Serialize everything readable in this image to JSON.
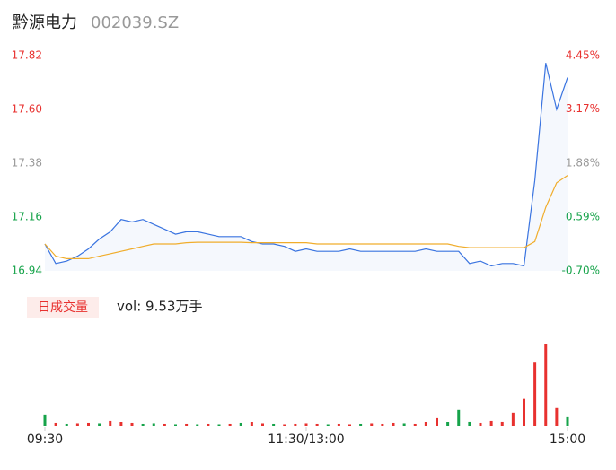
{
  "header": {
    "name": "黔源电力",
    "code": "002039.SZ"
  },
  "chart_data": [
    {
      "type": "line",
      "x": [
        0,
        5,
        10,
        15,
        20,
        25,
        30,
        35,
        40,
        45,
        50,
        55,
        60,
        65,
        70,
        75,
        80,
        85,
        90,
        95,
        100,
        105,
        110,
        115,
        120,
        125,
        130,
        135,
        140,
        145,
        150,
        155,
        160,
        165,
        170,
        175,
        180,
        185,
        190,
        195,
        200,
        205,
        210,
        215,
        220,
        225,
        230,
        235,
        240
      ],
      "xlim": [
        0,
        240
      ],
      "xticks": [
        {
          "value": 0,
          "label": "09:30"
        },
        {
          "value": 120,
          "label": "11:30/13:00"
        },
        {
          "value": 240,
          "label": "15:00"
        }
      ],
      "ylim": [
        16.94,
        17.82
      ],
      "yticks": [
        16.94,
        17.16,
        17.38,
        {
          "value": 17.6,
          "label": "17.60"
        },
        17.82
      ],
      "ytick_colors": [
        "#16a34a",
        "#16a34a",
        "#999999",
        "#e8312f",
        "#e8312f"
      ],
      "y2lim": [
        -0.7,
        4.45
      ],
      "y2ticks": [
        {
          "value": -0.7,
          "label": "-0.70%"
        },
        {
          "value": 0.59,
          "label": "0.59%"
        },
        {
          "value": 1.88,
          "label": "1.88%"
        },
        {
          "value": 3.17,
          "label": "3.17%"
        },
        {
          "value": 4.45,
          "label": "4.45%"
        }
      ],
      "series": [
        {
          "color": "#3a74e0",
          "values": [
            17.05,
            16.97,
            16.98,
            17.0,
            17.03,
            17.07,
            17.1,
            17.15,
            17.14,
            17.15,
            17.13,
            17.11,
            17.09,
            17.1,
            17.1,
            17.09,
            17.08,
            17.08,
            17.08,
            17.06,
            17.05,
            17.05,
            17.04,
            17.02,
            17.03,
            17.02,
            17.02,
            17.02,
            17.03,
            17.02,
            17.02,
            17.02,
            17.02,
            17.02,
            17.02,
            17.03,
            17.02,
            17.02,
            17.02,
            16.97,
            16.98,
            16.96,
            16.97,
            16.97,
            16.96,
            17.31,
            17.79,
            17.6,
            17.73
          ]
        },
        {
          "color": "#f0ad2c",
          "values": [
            17.05,
            17.0,
            16.99,
            16.99,
            16.99,
            17.0,
            17.01,
            17.02,
            17.03,
            17.04,
            17.05,
            17.05,
            17.05,
            17.055,
            17.057,
            17.057,
            17.057,
            17.057,
            17.057,
            17.055,
            17.055,
            17.055,
            17.055,
            17.055,
            17.055,
            17.05,
            17.05,
            17.05,
            17.05,
            17.05,
            17.05,
            17.05,
            17.05,
            17.05,
            17.05,
            17.05,
            17.05,
            17.05,
            17.04,
            17.035,
            17.035,
            17.035,
            17.035,
            17.035,
            17.035,
            17.06,
            17.2,
            17.3,
            17.33
          ]
        }
      ]
    },
    {
      "type": "bar",
      "title": "日成交量",
      "annotation": "vol: 9.53万手",
      "values": [
        1200,
        300,
        200,
        250,
        300,
        250,
        600,
        400,
        300,
        200,
        250,
        200,
        150,
        200,
        150,
        200,
        150,
        200,
        300,
        400,
        250,
        200,
        150,
        200,
        250,
        200,
        150,
        200,
        150,
        200,
        250,
        200,
        300,
        250,
        200,
        400,
        900,
        400,
        1800,
        500,
        300,
        600,
        500,
        1500,
        3000,
        7000,
        9000,
        2000,
        1000
      ],
      "colors": [
        "#16a34a",
        "#e8312f",
        "#16a34a",
        "#e8312f",
        "#e8312f",
        "#16a34a",
        "#e8312f",
        "#e8312f",
        "#e8312f",
        "#16a34a",
        "#16a34a",
        "#e8312f",
        "#16a34a",
        "#e8312f",
        "#16a34a",
        "#e8312f",
        "#16a34a",
        "#e8312f",
        "#16a34a",
        "#e8312f",
        "#e8312f",
        "#16a34a",
        "#e8312f",
        "#e8312f",
        "#e8312f",
        "#e8312f",
        "#16a34a",
        "#e8312f",
        "#e8312f",
        "#16a34a",
        "#e8312f",
        "#e8312f",
        "#e8312f",
        "#16a34a",
        "#e8312f",
        "#e8312f",
        "#e8312f",
        "#16a34a",
        "#16a34a",
        "#16a34a",
        "#e8312f",
        "#e8312f",
        "#e8312f",
        "#e8312f",
        "#e8312f",
        "#e8312f",
        "#e8312f",
        "#e8312f",
        "#16a34a"
      ]
    }
  ]
}
